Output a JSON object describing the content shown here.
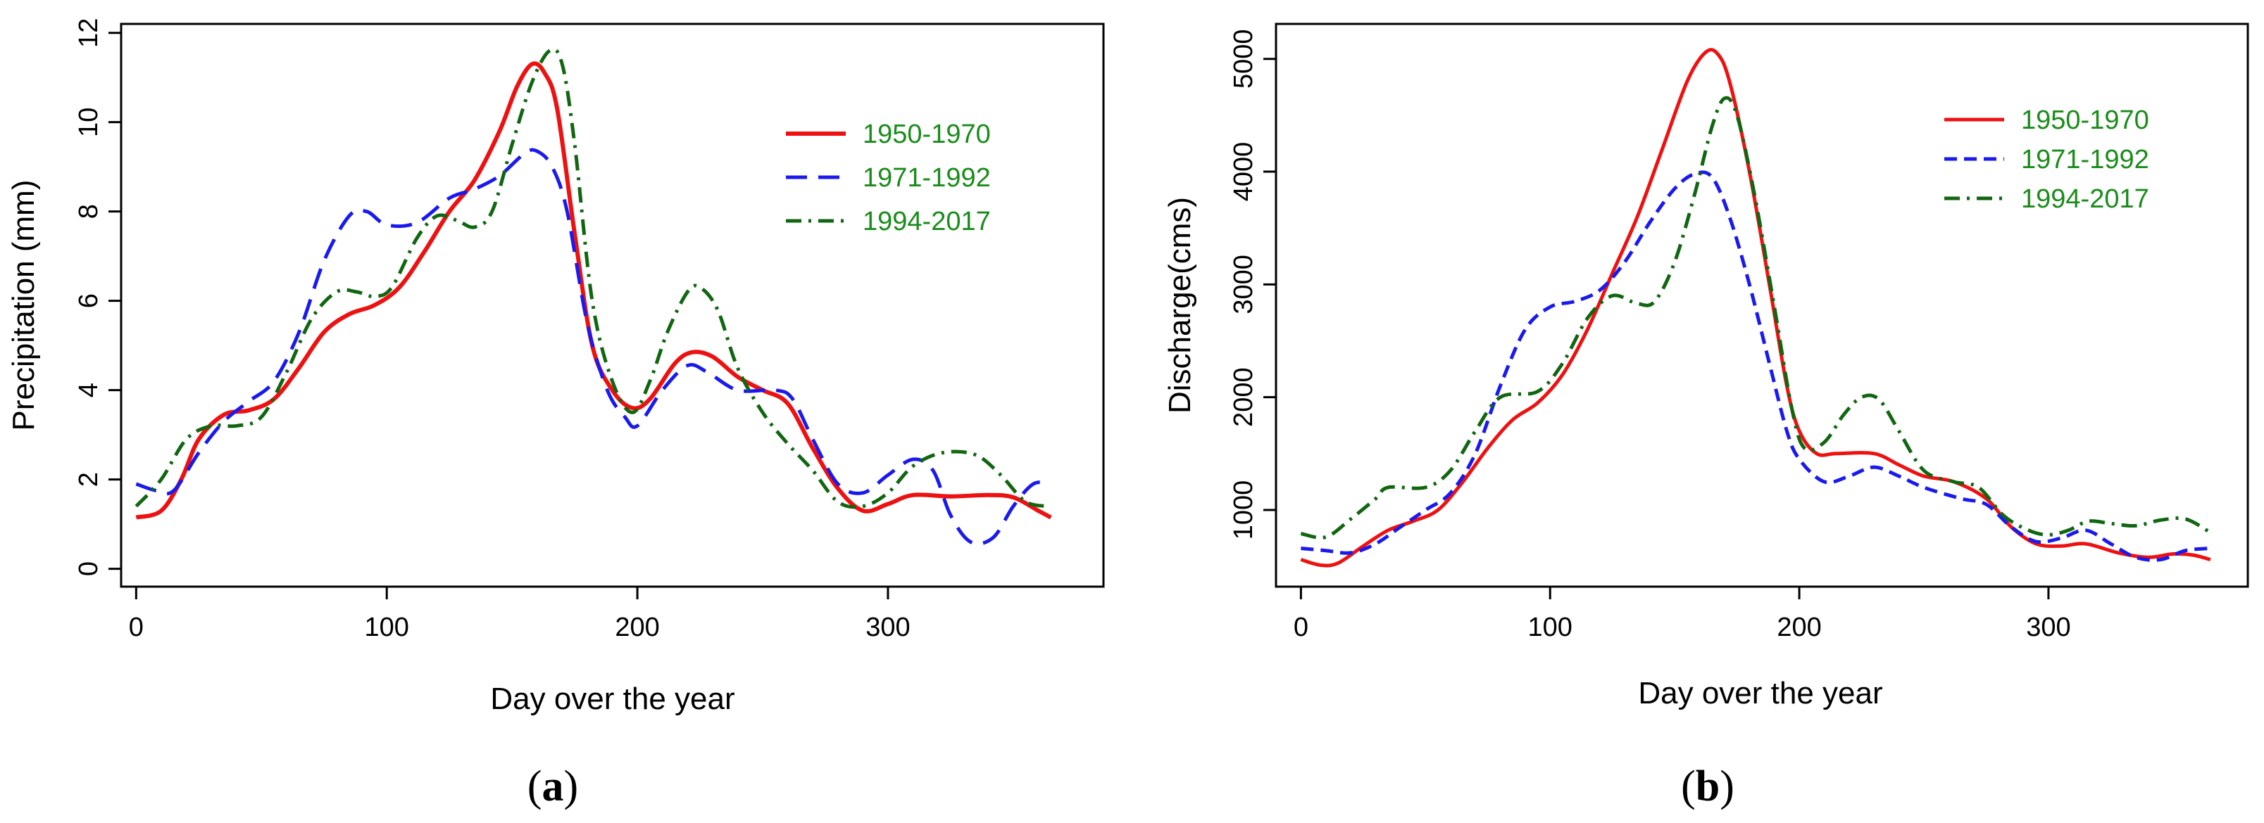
{
  "chart_data": [
    {
      "type": "line",
      "panel_label": {
        "open": "(",
        "letter": "a",
        "close": ")"
      },
      "title": "",
      "xlabel": "Day over the year",
      "ylabel": "Precipitation (mm)",
      "xlim": [
        -6,
        386
      ],
      "ylim": [
        -0.4,
        12.2
      ],
      "xticks": [
        0,
        100,
        200,
        300
      ],
      "yticks": [
        0,
        2,
        4,
        6,
        8,
        10,
        12
      ],
      "legend_position": "top-right",
      "legend_text_color": "#1a8c1a",
      "series": [
        {
          "name": "1950-1970",
          "color": "#ee1111",
          "dash": "solid",
          "width": 6,
          "points": [
            [
              0,
              1.15
            ],
            [
              10,
              1.3
            ],
            [
              18,
              2.0
            ],
            [
              25,
              2.9
            ],
            [
              35,
              3.45
            ],
            [
              45,
              3.55
            ],
            [
              55,
              3.8
            ],
            [
              65,
              4.5
            ],
            [
              75,
              5.3
            ],
            [
              85,
              5.7
            ],
            [
              95,
              5.9
            ],
            [
              105,
              6.3
            ],
            [
              115,
              7.1
            ],
            [
              125,
              8.0
            ],
            [
              135,
              8.7
            ],
            [
              145,
              9.8
            ],
            [
              152,
              10.8
            ],
            [
              158,
              11.3
            ],
            [
              163,
              11.1
            ],
            [
              168,
              10.3
            ],
            [
              175,
              7.5
            ],
            [
              182,
              5.0
            ],
            [
              190,
              4.0
            ],
            [
              198,
              3.6
            ],
            [
              205,
              3.8
            ],
            [
              215,
              4.6
            ],
            [
              222,
              4.85
            ],
            [
              230,
              4.75
            ],
            [
              240,
              4.3
            ],
            [
              250,
              4.0
            ],
            [
              260,
              3.7
            ],
            [
              270,
              2.7
            ],
            [
              280,
              1.8
            ],
            [
              290,
              1.3
            ],
            [
              300,
              1.45
            ],
            [
              310,
              1.65
            ],
            [
              325,
              1.62
            ],
            [
              340,
              1.65
            ],
            [
              350,
              1.6
            ],
            [
              360,
              1.3
            ],
            [
              365,
              1.15
            ]
          ]
        },
        {
          "name": "1971-1992",
          "color": "#1a1aee",
          "dash": "long-dash",
          "width": 5,
          "points": [
            [
              0,
              1.9
            ],
            [
              8,
              1.75
            ],
            [
              15,
              1.75
            ],
            [
              25,
              2.6
            ],
            [
              35,
              3.3
            ],
            [
              45,
              3.75
            ],
            [
              55,
              4.2
            ],
            [
              65,
              5.3
            ],
            [
              75,
              6.9
            ],
            [
              85,
              7.9
            ],
            [
              92,
              8.0
            ],
            [
              100,
              7.7
            ],
            [
              112,
              7.75
            ],
            [
              125,
              8.3
            ],
            [
              135,
              8.5
            ],
            [
              145,
              8.8
            ],
            [
              155,
              9.3
            ],
            [
              160,
              9.35
            ],
            [
              166,
              9.0
            ],
            [
              172,
              8.0
            ],
            [
              180,
              5.5
            ],
            [
              188,
              4.0
            ],
            [
              195,
              3.4
            ],
            [
              200,
              3.2
            ],
            [
              210,
              4.0
            ],
            [
              220,
              4.55
            ],
            [
              228,
              4.4
            ],
            [
              240,
              4.0
            ],
            [
              255,
              4.0
            ],
            [
              262,
              3.8
            ],
            [
              270,
              2.9
            ],
            [
              280,
              1.9
            ],
            [
              290,
              1.7
            ],
            [
              300,
              2.1
            ],
            [
              310,
              2.45
            ],
            [
              318,
              2.2
            ],
            [
              325,
              1.2
            ],
            [
              333,
              0.6
            ],
            [
              342,
              0.7
            ],
            [
              350,
              1.4
            ],
            [
              358,
              1.9
            ],
            [
              365,
              1.9
            ]
          ]
        },
        {
          "name": "1994-2017",
          "color": "#116611",
          "dash": "dash-dot",
          "width": 5,
          "points": [
            [
              0,
              1.4
            ],
            [
              10,
              2.0
            ],
            [
              20,
              2.9
            ],
            [
              30,
              3.2
            ],
            [
              40,
              3.2
            ],
            [
              50,
              3.4
            ],
            [
              60,
              4.4
            ],
            [
              70,
              5.6
            ],
            [
              80,
              6.2
            ],
            [
              88,
              6.2
            ],
            [
              95,
              6.1
            ],
            [
              102,
              6.3
            ],
            [
              112,
              7.4
            ],
            [
              120,
              7.9
            ],
            [
              128,
              7.8
            ],
            [
              135,
              7.65
            ],
            [
              142,
              8.0
            ],
            [
              150,
              9.5
            ],
            [
              158,
              10.9
            ],
            [
              165,
              11.6
            ],
            [
              170,
              11.3
            ],
            [
              175,
              9.5
            ],
            [
              182,
              6.0
            ],
            [
              190,
              4.2
            ],
            [
              198,
              3.5
            ],
            [
              205,
              4.2
            ],
            [
              212,
              5.3
            ],
            [
              220,
              6.2
            ],
            [
              225,
              6.3
            ],
            [
              232,
              5.8
            ],
            [
              240,
              4.5
            ],
            [
              250,
              3.5
            ],
            [
              260,
              2.8
            ],
            [
              270,
              2.2
            ],
            [
              280,
              1.5
            ],
            [
              290,
              1.4
            ],
            [
              300,
              1.7
            ],
            [
              310,
              2.3
            ],
            [
              322,
              2.6
            ],
            [
              335,
              2.55
            ],
            [
              345,
              2.1
            ],
            [
              355,
              1.5
            ],
            [
              365,
              1.4
            ]
          ]
        }
      ]
    },
    {
      "type": "line",
      "panel_label": {
        "open": "(",
        "letter": "b",
        "close": ")"
      },
      "title": "",
      "xlabel": "Day over the year",
      "ylabel": "Discharge(cms)",
      "xlim": [
        -10,
        380
      ],
      "ylim": [
        320,
        5310
      ],
      "xticks": [
        0,
        100,
        200,
        300
      ],
      "yticks": [
        1000,
        2000,
        3000,
        4000,
        5000
      ],
      "legend_position": "top-right",
      "legend_text_color": "#1a8c1a",
      "series": [
        {
          "name": "1950-1970",
          "color": "#ee1111",
          "dash": "solid",
          "width": 5,
          "points": [
            [
              0,
              560
            ],
            [
              8,
              510
            ],
            [
              15,
              530
            ],
            [
              25,
              680
            ],
            [
              35,
              820
            ],
            [
              45,
              900
            ],
            [
              55,
              1000
            ],
            [
              65,
              1250
            ],
            [
              75,
              1550
            ],
            [
              85,
              1800
            ],
            [
              95,
              1950
            ],
            [
              105,
              2200
            ],
            [
              115,
              2600
            ],
            [
              125,
              3100
            ],
            [
              135,
              3600
            ],
            [
              145,
              4200
            ],
            [
              155,
              4800
            ],
            [
              162,
              5050
            ],
            [
              167,
              5050
            ],
            [
              172,
              4800
            ],
            [
              180,
              4000
            ],
            [
              188,
              3000
            ],
            [
              195,
              2100
            ],
            [
              200,
              1700
            ],
            [
              207,
              1500
            ],
            [
              215,
              1500
            ],
            [
              230,
              1500
            ],
            [
              240,
              1400
            ],
            [
              250,
              1300
            ],
            [
              262,
              1250
            ],
            [
              275,
              1100
            ],
            [
              285,
              850
            ],
            [
              295,
              700
            ],
            [
              305,
              680
            ],
            [
              315,
              700
            ],
            [
              328,
              620
            ],
            [
              340,
              580
            ],
            [
              350,
              610
            ],
            [
              358,
              600
            ],
            [
              365,
              560
            ]
          ]
        },
        {
          "name": "1971-1992",
          "color": "#1a1aee",
          "dash": "short-dash",
          "width": 5,
          "points": [
            [
              0,
              660
            ],
            [
              10,
              640
            ],
            [
              20,
              620
            ],
            [
              30,
              700
            ],
            [
              40,
              850
            ],
            [
              50,
              1000
            ],
            [
              60,
              1150
            ],
            [
              70,
              1500
            ],
            [
              80,
              2100
            ],
            [
              90,
              2600
            ],
            [
              100,
              2800
            ],
            [
              110,
              2850
            ],
            [
              120,
              2950
            ],
            [
              130,
              3200
            ],
            [
              140,
              3550
            ],
            [
              150,
              3850
            ],
            [
              158,
              3980
            ],
            [
              165,
              3950
            ],
            [
              172,
              3600
            ],
            [
              180,
              3000
            ],
            [
              188,
              2300
            ],
            [
              195,
              1700
            ],
            [
              200,
              1450
            ],
            [
              210,
              1250
            ],
            [
              220,
              1300
            ],
            [
              230,
              1380
            ],
            [
              240,
              1300
            ],
            [
              250,
              1200
            ],
            [
              265,
              1100
            ],
            [
              275,
              1050
            ],
            [
              285,
              850
            ],
            [
              295,
              720
            ],
            [
              305,
              750
            ],
            [
              315,
              820
            ],
            [
              325,
              700
            ],
            [
              335,
              580
            ],
            [
              345,
              560
            ],
            [
              355,
              640
            ],
            [
              365,
              660
            ]
          ]
        },
        {
          "name": "1994-2017",
          "color": "#116611",
          "dash": "dash-dot",
          "width": 5,
          "points": [
            [
              0,
              790
            ],
            [
              10,
              760
            ],
            [
              20,
              920
            ],
            [
              30,
              1100
            ],
            [
              35,
              1200
            ],
            [
              50,
              1200
            ],
            [
              60,
              1350
            ],
            [
              70,
              1700
            ],
            [
              80,
              2000
            ],
            [
              95,
              2050
            ],
            [
              105,
              2300
            ],
            [
              115,
              2700
            ],
            [
              125,
              2900
            ],
            [
              135,
              2830
            ],
            [
              142,
              2850
            ],
            [
              150,
              3200
            ],
            [
              158,
              3800
            ],
            [
              165,
              4400
            ],
            [
              170,
              4650
            ],
            [
              175,
              4500
            ],
            [
              182,
              3800
            ],
            [
              190,
              2800
            ],
            [
              197,
              1900
            ],
            [
              202,
              1550
            ],
            [
              210,
              1600
            ],
            [
              218,
              1850
            ],
            [
              225,
              2000
            ],
            [
              232,
              1980
            ],
            [
              240,
              1700
            ],
            [
              250,
              1350
            ],
            [
              262,
              1250
            ],
            [
              272,
              1200
            ],
            [
              282,
              950
            ],
            [
              292,
              820
            ],
            [
              300,
              780
            ],
            [
              308,
              820
            ],
            [
              316,
              900
            ],
            [
              325,
              880
            ],
            [
              335,
              860
            ],
            [
              345,
              910
            ],
            [
              355,
              920
            ],
            [
              365,
              800
            ]
          ]
        }
      ]
    }
  ]
}
